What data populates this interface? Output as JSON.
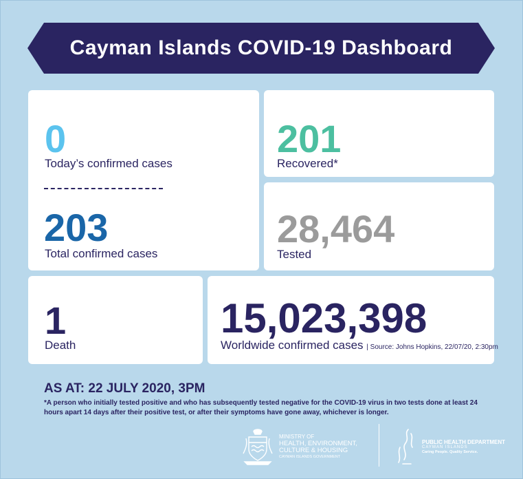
{
  "title": "Cayman Islands COVID-19 Dashboard",
  "todays_cases": {
    "value": "0",
    "label": "Today’s confirmed cases"
  },
  "total_cases": {
    "value": "203",
    "label": "Total confirmed cases"
  },
  "recovered": {
    "value": "201",
    "label": "Recovered*"
  },
  "tested": {
    "value": "28,464",
    "label": "Tested"
  },
  "death": {
    "value": "1",
    "label": "Death"
  },
  "worldwide": {
    "value": "15,023,398",
    "label": "Worldwide confirmed cases",
    "source": "| Source: Johns Hopkins, 22/07/20, 2:30pm"
  },
  "as_at": "AS AT: 22 JULY 2020, 3PM",
  "footnote": "*A person who initially tested positive and who has subsequently tested negative for the COVID-19 virus in two tests done at least 24 hours apart 14 days after their positive test, or after their symptoms have gone away, whichever is longer.",
  "ministry_logo": {
    "line1": "MINISTRY OF",
    "line2": "HEALTH, ENVIRONMENT,",
    "line3": "CULTURE & HOUSING",
    "line4": "CAYMAN ISLANDS GOVERNMENT"
  },
  "phd_logo": {
    "line1": "PUBLIC HEALTH DEPARTMENT",
    "line2": "CAYMAN ISLANDS",
    "line3": "Caring People. Quality Service."
  },
  "colors": {
    "navy": "#2a2461",
    "light_blue": "#5bc3ee",
    "green": "#4cbfa0",
    "blue": "#1a66a8",
    "grey": "#9b9b9b",
    "background": "#b9d8eb"
  }
}
